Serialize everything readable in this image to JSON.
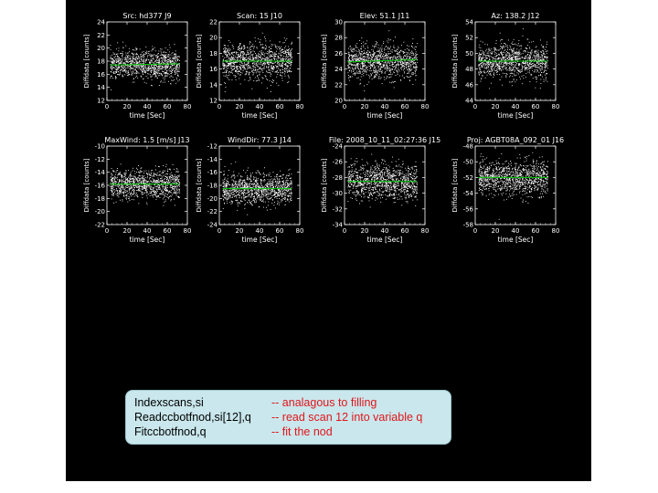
{
  "chart_data": [
    {
      "type": "scatter",
      "title": "Src: hd377 J9",
      "xlabel": "time [Sec]",
      "ylabel": "Diffdata [counts]",
      "xlim": [
        0,
        80
      ],
      "ylim": [
        12,
        24
      ],
      "xticks": [
        0,
        20,
        40,
        60,
        80
      ],
      "yticks": [
        12,
        14,
        16,
        18,
        20,
        22,
        24
      ],
      "data_x_range": [
        3,
        72
      ],
      "center": 17.5,
      "spread": 2.0,
      "fit": [
        17.4,
        17.6
      ],
      "fit_color": "#00cc00",
      "point_color": "#ffffff"
    },
    {
      "type": "scatter",
      "title": "Scan: 15 J10",
      "xlabel": "time [Sec]",
      "ylabel": "Diffdata [counts]",
      "xlim": [
        0,
        80
      ],
      "ylim": [
        12,
        22
      ],
      "xticks": [
        0,
        20,
        40,
        60,
        80
      ],
      "yticks": [
        12,
        14,
        16,
        18,
        20,
        22
      ],
      "data_x_range": [
        3,
        72
      ],
      "center": 17.0,
      "spread": 2.1,
      "fit": [
        17.0,
        17.0
      ],
      "fit_color": "#00cc00",
      "point_color": "#ffffff"
    },
    {
      "type": "scatter",
      "title": "Elev:  51.1 J11",
      "xlabel": "time [Sec]",
      "ylabel": "Diffdata [counts]",
      "xlim": [
        0,
        80
      ],
      "ylim": [
        20,
        30
      ],
      "xticks": [
        0,
        20,
        40,
        60,
        80
      ],
      "yticks": [
        20,
        22,
        24,
        26,
        28,
        30
      ],
      "data_x_range": [
        3,
        72
      ],
      "center": 25.0,
      "spread": 2.0,
      "fit": [
        24.9,
        25.2
      ],
      "fit_color": "#00cc00",
      "point_color": "#ffffff"
    },
    {
      "type": "scatter",
      "title": "Az: 138.2 J12",
      "xlabel": "time [Sec]",
      "ylabel": "Diffdata [counts]",
      "xlim": [
        0,
        80
      ],
      "ylim": [
        44,
        54
      ],
      "xticks": [
        0,
        20,
        40,
        60,
        80
      ],
      "yticks": [
        44,
        46,
        48,
        50,
        52,
        54
      ],
      "data_x_range": [
        3,
        72
      ],
      "center": 49.0,
      "spread": 2.0,
      "fit": [
        49.0,
        49.0
      ],
      "fit_color": "#00cc00",
      "point_color": "#ffffff"
    },
    {
      "type": "scatter",
      "title": "MaxWind:   1.5 [m/s]  J13",
      "xlabel": "time [Sec]",
      "ylabel": "Diffdata [counts]",
      "xlim": [
        0,
        80
      ],
      "ylim": [
        -22,
        -10
      ],
      "xticks": [
        0,
        20,
        40,
        60,
        80
      ],
      "yticks": [
        -22,
        -20,
        -18,
        -16,
        -14,
        -12,
        -10
      ],
      "data_x_range": [
        3,
        72
      ],
      "center": -15.8,
      "spread": 2.0,
      "fit": [
        -15.8,
        -15.8
      ],
      "fit_color": "#00cc00",
      "point_color": "#ffffff"
    },
    {
      "type": "scatter",
      "title": "WindDir:  77.3 J14",
      "xlabel": "time [Sec]",
      "ylabel": "Diffdata [counts]",
      "xlim": [
        0,
        80
      ],
      "ylim": [
        -24,
        -12
      ],
      "xticks": [
        0,
        20,
        40,
        60,
        80
      ],
      "yticks": [
        -24,
        -22,
        -20,
        -18,
        -16,
        -14,
        -12
      ],
      "data_x_range": [
        3,
        72
      ],
      "center": -18.5,
      "spread": 2.1,
      "fit": [
        -18.5,
        -18.5
      ],
      "fit_color": "#00cc00",
      "point_color": "#ffffff"
    },
    {
      "type": "scatter",
      "title": "File: 2008_10_11_02:27:36  J15",
      "xlabel": "time [Sec]",
      "ylabel": "Diffdata [counts]",
      "xlim": [
        0,
        80
      ],
      "ylim": [
        -34,
        -24
      ],
      "xticks": [
        0,
        20,
        40,
        60,
        80
      ],
      "yticks": [
        -34,
        -32,
        -30,
        -28,
        -26,
        -24
      ],
      "data_x_range": [
        3,
        72
      ],
      "center": -28.5,
      "spread": 2.0,
      "fit": [
        -28.5,
        -28.5
      ],
      "fit_color": "#00cc00",
      "point_color": "#ffffff"
    },
    {
      "type": "scatter",
      "title": "Proj: AGBT08A_092_01  J16",
      "xlabel": "time [Sec]",
      "ylabel": "Diffdata [counts]",
      "xlim": [
        0,
        80
      ],
      "ylim": [
        -58,
        -48
      ],
      "xticks": [
        0,
        20,
        40,
        60,
        80
      ],
      "yticks": [
        -58,
        -56,
        -54,
        -52,
        -50,
        -48
      ],
      "data_x_range": [
        3,
        72
      ],
      "center": -52.0,
      "spread": 2.0,
      "fit": [
        -52.0,
        -52.0
      ],
      "fit_color": "#00cc00",
      "point_color": "#ffffff"
    }
  ],
  "commands": [
    {
      "code": "Indexscans,si",
      "comment": "-- analagous to filling"
    },
    {
      "code": "Readccbotfnod,si[12],q",
      "comment": "-- read scan 12 into variable q"
    },
    {
      "code": "Fitccbotfnod,q",
      "comment": "-- fit the nod"
    }
  ],
  "colors": {
    "background": "#000000",
    "axes": "#ffffff",
    "fit": "#00cc00",
    "comment": "#e0161b",
    "box": "#c9e7ec"
  }
}
